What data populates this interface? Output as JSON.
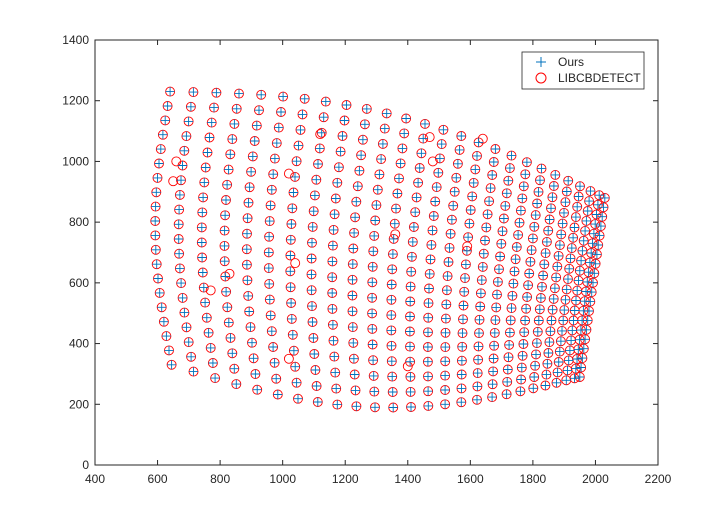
{
  "chart_data": {
    "type": "scatter",
    "title": "",
    "xlabel": "",
    "ylabel": "",
    "xlim": [
      400,
      2200
    ],
    "ylim": [
      0,
      1400
    ],
    "xticks": [
      400,
      600,
      800,
      1000,
      1200,
      1400,
      1600,
      1800,
      2000,
      2200
    ],
    "yticks": [
      0,
      200,
      400,
      600,
      800,
      1000,
      1200,
      1400
    ],
    "grid": false,
    "legend_position": "top-right",
    "series": [
      {
        "name": "Ours",
        "marker": "plus",
        "color": "#0072BD",
        "generator": "grid"
      },
      {
        "name": "LIBCBDETECT",
        "marker": "circle",
        "color": "#FF0000",
        "generator": "grid-plus-extra",
        "extra_points": [
          [
            660,
            1000
          ],
          [
            650,
            935
          ],
          [
            1120,
            1090
          ],
          [
            1470,
            1080
          ],
          [
            1640,
            1075
          ],
          [
            1020,
            960
          ],
          [
            1480,
            1000
          ],
          [
            1360,
            760
          ],
          [
            1590,
            720
          ],
          [
            830,
            630
          ],
          [
            1040,
            665
          ],
          [
            770,
            575
          ],
          [
            1020,
            350
          ],
          [
            1400,
            325
          ]
        ]
      }
    ],
    "grid_model": {
      "rows": 20,
      "cols": 26,
      "corner_top_left": [
        640,
        1230
      ],
      "corner_top_right": [
        2030,
        880
      ],
      "corner_bottom_left": [
        645,
        330
      ],
      "corner_bottom_right": [
        1950,
        290
      ],
      "inner_left_control": [
        540,
        760
      ],
      "inner_bottom_control": [
        1350,
        190
      ],
      "inner_top_control": [
        1100,
        1260
      ],
      "inner_right_control": [
        1990,
        590
      ]
    }
  }
}
